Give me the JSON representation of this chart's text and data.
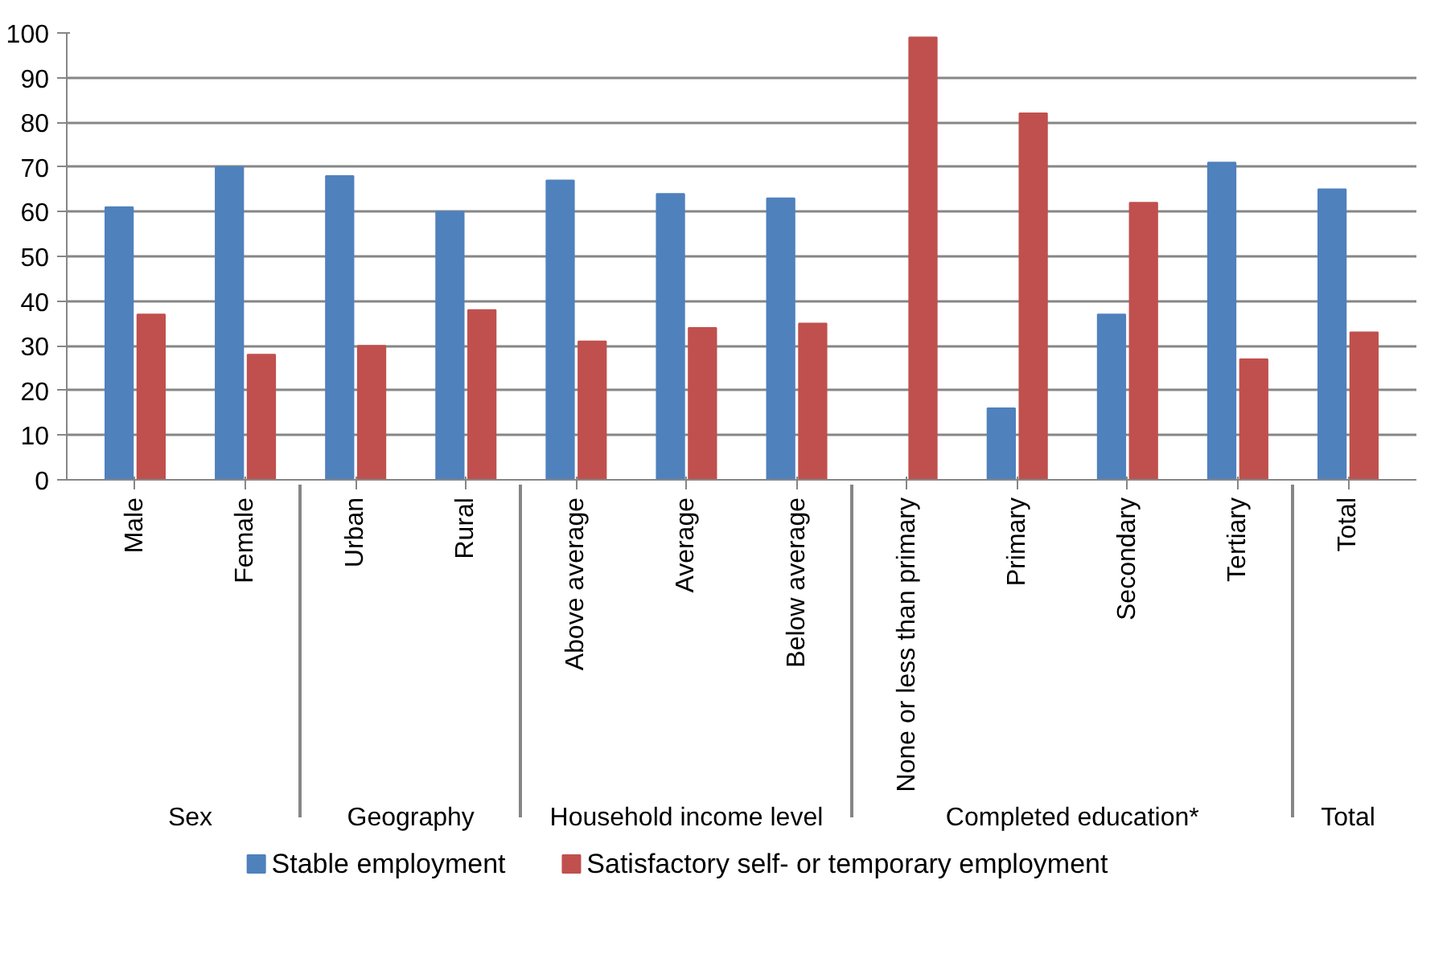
{
  "chart_data": {
    "type": "bar",
    "categories": [
      "Male",
      "Female",
      "Urban",
      "Rural",
      "Above average",
      "Average",
      "Below average",
      "None or less than primary",
      "Primary",
      "Secondary",
      "Tertiary",
      "Total"
    ],
    "annotations": [
      "Sex",
      "Geography",
      "Household income level",
      "Completed education*",
      "Total"
    ],
    "series": [
      {
        "name": "Stable employment",
        "color": "#4f81bd",
        "values": [
          61,
          70,
          68,
          60,
          67,
          64,
          63,
          0,
          16,
          37,
          71,
          65
        ]
      },
      {
        "name": "Satisfactory self- or temporary employment",
        "color": "#c0504d",
        "values": [
          37,
          28,
          30,
          38,
          31,
          34,
          35,
          99,
          82,
          62,
          27,
          33
        ]
      }
    ],
    "ylim": [
      0,
      100
    ],
    "yticks": [
      0,
      10,
      20,
      30,
      40,
      50,
      60,
      70,
      80,
      90,
      100
    ],
    "grid": "y",
    "legend": "bottom"
  }
}
